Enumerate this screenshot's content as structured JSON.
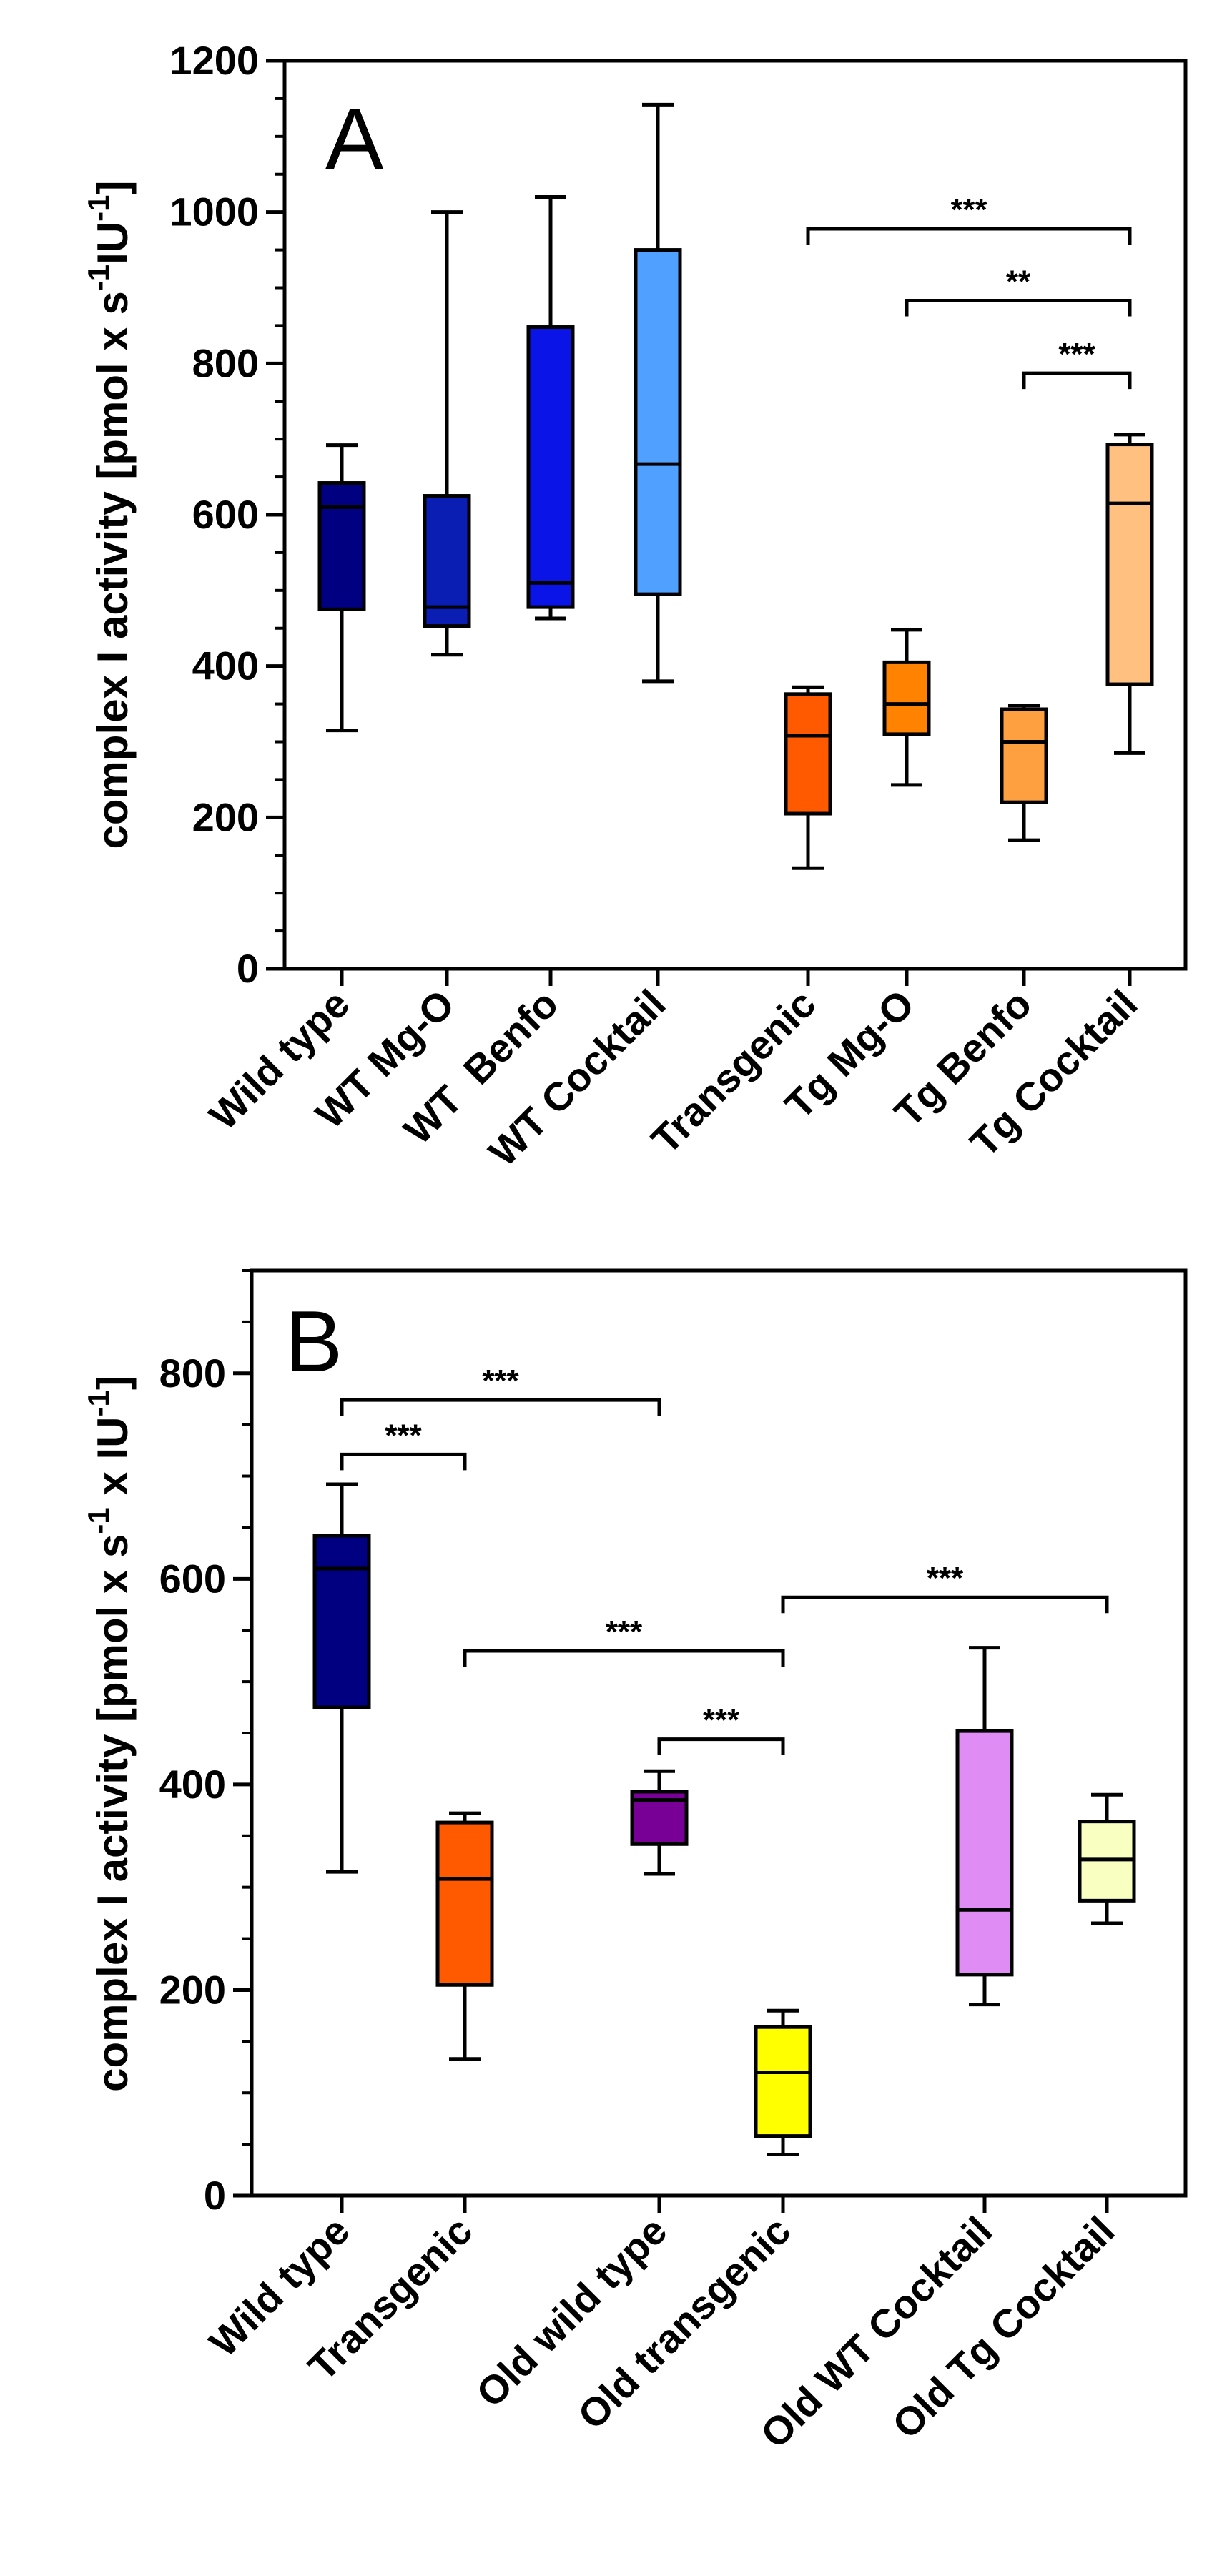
{
  "chart_data": [
    {
      "type": "box",
      "panel_label": "A",
      "ylabel_parts": {
        "main": "complex I activity [pmol x s",
        "sup1": "-1",
        "mid": "IU",
        "sup2": "-1",
        "end": "]"
      },
      "ylim": [
        0,
        1200
      ],
      "yticks": [
        "0",
        "200",
        "400",
        "600",
        "800",
        "1000",
        "1200"
      ],
      "ytick_values": [
        0,
        200,
        400,
        600,
        800,
        1000,
        1200
      ],
      "grid": false,
      "categories": [
        "Wild type",
        "WT Mg-O",
        "WT  Benfo",
        "WT Cocktail",
        "Transgenic",
        "Tg Mg-O",
        "Tg Benfo",
        "Tg Cocktail"
      ],
      "colors": [
        "#000080",
        "#0a1eb4",
        "#0a14e6",
        "#50a0ff",
        "#ff5a00",
        "#ff8200",
        "#ffa040",
        "#ffc080"
      ],
      "boxes": [
        {
          "min": 315,
          "q1": 475,
          "median": 610,
          "q3": 642,
          "max": 692
        },
        {
          "min": 415,
          "q1": 453,
          "median": 478,
          "q3": 625,
          "max": 1000
        },
        {
          "min": 463,
          "q1": 478,
          "median": 510,
          "q3": 848,
          "max": 1020
        },
        {
          "min": 380,
          "q1": 495,
          "median": 667,
          "q3": 950,
          "max": 1142
        },
        {
          "min": 133,
          "q1": 205,
          "median": 308,
          "q3": 363,
          "max": 372
        },
        {
          "min": 243,
          "q1": 310,
          "median": 350,
          "q3": 405,
          "max": 448
        },
        {
          "min": 170,
          "q1": 220,
          "median": 300,
          "q3": 343,
          "max": 348
        },
        {
          "min": 285,
          "q1": 376,
          "median": 615,
          "q3": 693,
          "max": 706
        }
      ],
      "significance": [
        {
          "from": 4,
          "to": 7,
          "value": 978,
          "label": "***"
        },
        {
          "from": 5,
          "to": 7,
          "value": 883,
          "label": "**"
        },
        {
          "from": 6,
          "to": 7,
          "value": 787,
          "label": "***"
        }
      ]
    },
    {
      "type": "box",
      "panel_label": "B",
      "ylabel_parts": {
        "main": "complex I activity [pmol x s",
        "sup1": "-1",
        "mid": " x IU",
        "sup2": "-1",
        "end": "]"
      },
      "ylim": [
        0,
        900
      ],
      "yticks": [
        "0",
        "200",
        "400",
        "600",
        "800"
      ],
      "ytick_values": [
        0,
        200,
        400,
        600,
        800
      ],
      "grid": false,
      "categories": [
        "Wild type",
        "Transgenic",
        "Old wild type",
        "Old transgenic",
        "Old WT Cocktail",
        "Old Tg Cocktail"
      ],
      "colors": [
        "#000080",
        "#ff5a00",
        "#780096",
        "#ffff00",
        "#e08cf5",
        "#f8ffc0"
      ],
      "boxes": [
        {
          "min": 315,
          "q1": 475,
          "median": 610,
          "q3": 642,
          "max": 692
        },
        {
          "min": 133,
          "q1": 205,
          "median": 308,
          "q3": 363,
          "max": 372
        },
        {
          "min": 313,
          "q1": 342,
          "median": 385,
          "q3": 393,
          "max": 413
        },
        {
          "min": 40,
          "q1": 58,
          "median": 120,
          "q3": 164,
          "max": 180
        },
        {
          "min": 186,
          "q1": 215,
          "median": 278,
          "q3": 452,
          "max": 533
        },
        {
          "min": 265,
          "q1": 287,
          "median": 327,
          "q3": 364,
          "max": 390
        }
      ],
      "significance": [
        {
          "from": 0,
          "to": 2,
          "value": 774,
          "label": "***"
        },
        {
          "from": 0,
          "to": 1,
          "value": 721,
          "label": "***"
        },
        {
          "from": 1,
          "to": 3,
          "value": 530,
          "label": "***"
        },
        {
          "from": 2,
          "to": 3,
          "value": 444,
          "label": "***"
        },
        {
          "from": 3,
          "to": 5,
          "value": 582,
          "label": "***"
        }
      ]
    }
  ]
}
